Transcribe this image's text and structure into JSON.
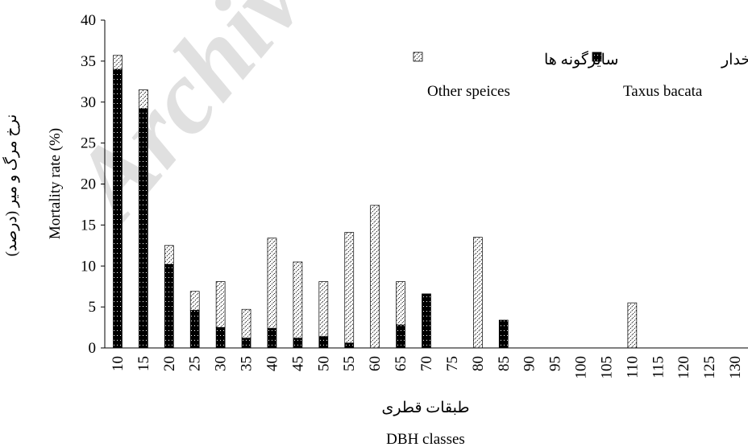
{
  "chart_data": {
    "type": "bar",
    "stacked": true,
    "categories": [
      "10",
      "15",
      "20",
      "25",
      "30",
      "35",
      "40",
      "45",
      "50",
      "55",
      "60",
      "65",
      "70",
      "75",
      "80",
      "85",
      "90",
      "95",
      "100",
      "105",
      "110",
      "115",
      "120",
      "125",
      "130"
    ],
    "series": [
      {
        "name": "سرخدار",
        "name_en": "Taxus bacata",
        "pattern": "solid-black-dotted",
        "color": "#000000",
        "values": [
          34,
          29.2,
          10.2,
          4.6,
          2.5,
          1.2,
          2.4,
          1.2,
          1.4,
          0.6,
          0,
          2.8,
          6.6,
          0,
          0,
          3.4,
          0,
          0,
          0,
          0,
          0,
          0,
          0,
          0,
          0
        ]
      },
      {
        "name": "سایرگونه ها",
        "name_en": "Other speices",
        "pattern": "white-hatched",
        "color": "#ffffff",
        "values": [
          1.7,
          2.3,
          2.3,
          2.3,
          5.6,
          3.5,
          11,
          9.3,
          6.7,
          13.5,
          17.4,
          5.3,
          0,
          0,
          13.5,
          0,
          0,
          0,
          0,
          0,
          5.5,
          0,
          0,
          0,
          0
        ]
      }
    ],
    "xlabel_fa": "طبقات قطری",
    "xlabel_en": "DBH classes",
    "ylabel_fa": "نرخ مرگ و میر (درصد)",
    "ylabel_en": "Mortality rate (%)",
    "ylim": [
      0,
      40
    ],
    "yticks": [
      0,
      5,
      10,
      15,
      20,
      25,
      30,
      35,
      40
    ],
    "grid": false,
    "legend_position": "top-right"
  },
  "watermark": "Archive",
  "colors": {
    "axis": "#000000",
    "watermark": "#c8c8c8"
  }
}
